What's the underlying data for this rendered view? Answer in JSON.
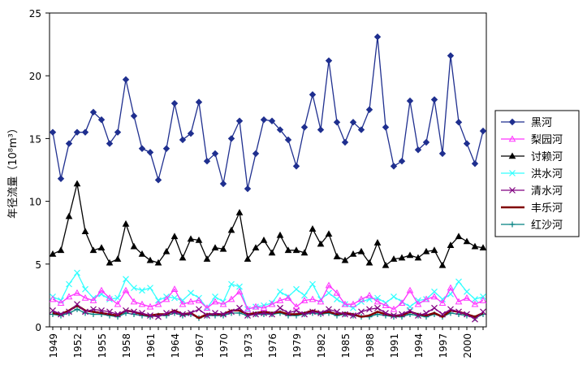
{
  "chart_data": {
    "type": "line",
    "title": "",
    "xlabel": "",
    "ylabel": "年径流量（10⁸m³）",
    "ylim": [
      0,
      25
    ],
    "yticks": [
      0,
      5,
      10,
      15,
      20,
      25
    ],
    "x": [
      1949,
      1950,
      1951,
      1952,
      1953,
      1954,
      1955,
      1956,
      1957,
      1958,
      1959,
      1960,
      1961,
      1962,
      1963,
      1964,
      1965,
      1966,
      1967,
      1968,
      1969,
      1970,
      1971,
      1972,
      1973,
      1974,
      1975,
      1976,
      1977,
      1978,
      1979,
      1980,
      1981,
      1982,
      1983,
      1984,
      1985,
      1986,
      1987,
      1988,
      1989,
      1990,
      1991,
      1992,
      1993,
      1994,
      1995,
      1996,
      1997,
      1998,
      1999,
      2000,
      2001,
      2002
    ],
    "xtick_labels": [
      "1949",
      "1952",
      "1955",
      "1958",
      "1961",
      "1964",
      "1967",
      "1970",
      "1973",
      "1976",
      "1979",
      "1982",
      "1985",
      "1988",
      "1991",
      "1994",
      "1997",
      "2000"
    ],
    "legend_position": "right",
    "series": [
      {
        "name": "黑河",
        "color": "#1f2f8f",
        "marker": "diamond",
        "values": [
          15.5,
          11.8,
          14.6,
          15.5,
          15.5,
          17.1,
          16.5,
          14.6,
          15.5,
          19.7,
          16.8,
          14.2,
          13.9,
          11.7,
          14.2,
          17.8,
          14.9,
          15.4,
          17.9,
          13.2,
          13.8,
          11.4,
          15.0,
          16.4,
          11.0,
          13.8,
          16.5,
          16.4,
          15.7,
          14.9,
          12.8,
          15.9,
          18.5,
          15.7,
          21.2,
          16.3,
          14.7,
          16.3,
          15.7,
          17.3,
          23.1,
          15.9,
          12.8,
          13.2,
          18.0,
          14.1,
          14.7,
          18.1,
          13.8,
          21.6,
          16.3,
          14.6,
          13.0,
          15.6
        ]
      },
      {
        "name": "梨园河",
        "color": "#ff33ff",
        "marker": "triangle-open",
        "values": [
          2.2,
          1.9,
          2.4,
          2.7,
          2.3,
          2.1,
          2.9,
          2.3,
          1.8,
          2.9,
          2.0,
          1.8,
          1.6,
          1.8,
          2.2,
          3.0,
          1.8,
          2.0,
          2.1,
          1.5,
          2.0,
          1.8,
          2.2,
          2.8,
          1.4,
          1.6,
          1.5,
          1.8,
          2.1,
          2.3,
          1.6,
          2.1,
          2.2,
          2.0,
          3.3,
          2.7,
          1.8,
          1.8,
          2.2,
          2.5,
          2.0,
          1.7,
          1.4,
          1.9,
          2.9,
          1.8,
          2.2,
          2.4,
          1.9,
          3.1,
          2.0,
          2.3,
          1.8,
          2.1
        ]
      },
      {
        "name": "讨赖河",
        "color": "#000000",
        "marker": "triangle",
        "values": [
          5.8,
          6.1,
          8.8,
          11.4,
          7.6,
          6.1,
          6.3,
          5.1,
          5.4,
          8.2,
          6.4,
          5.8,
          5.3,
          5.1,
          6.0,
          7.2,
          5.5,
          7.0,
          6.9,
          5.4,
          6.3,
          6.2,
          7.7,
          9.1,
          5.4,
          6.3,
          6.9,
          5.9,
          7.3,
          6.1,
          6.1,
          5.9,
          7.8,
          6.6,
          7.4,
          5.6,
          5.3,
          5.8,
          6.0,
          5.1,
          6.7,
          4.9,
          5.4,
          5.5,
          5.7,
          5.5,
          6.0,
          6.1,
          4.9,
          6.5,
          7.2,
          6.8,
          6.4,
          6.3
        ]
      },
      {
        "name": "洪水河",
        "color": "#33ffff",
        "marker": "x",
        "values": [
          2.4,
          2.1,
          3.4,
          4.3,
          3.0,
          2.3,
          2.6,
          2.2,
          2.3,
          3.8,
          3.1,
          2.9,
          3.1,
          2.1,
          2.4,
          2.3,
          2.1,
          2.7,
          2.3,
          1.5,
          2.4,
          2.0,
          3.4,
          3.2,
          1.4,
          1.6,
          1.7,
          1.9,
          2.8,
          2.4,
          3.0,
          2.5,
          3.4,
          2.2,
          2.7,
          2.2,
          1.8,
          1.5,
          2.0,
          2.2,
          2.3,
          1.9,
          2.4,
          2.0,
          1.6,
          2.1,
          2.2,
          2.8,
          2.2,
          2.6,
          3.6,
          2.8,
          2.2,
          2.4
        ]
      },
      {
        "name": "清水河",
        "color": "#800080",
        "marker": "x",
        "values": [
          1.3,
          1.0,
          1.2,
          1.8,
          1.2,
          1.4,
          1.3,
          1.2,
          1.0,
          1.3,
          1.2,
          1.1,
          0.9,
          0.8,
          1.1,
          1.2,
          1.0,
          1.1,
          1.4,
          0.9,
          1.1,
          1.0,
          1.2,
          1.5,
          0.9,
          1.0,
          1.1,
          1.0,
          1.5,
          1.1,
          1.3,
          1.0,
          1.2,
          1.1,
          1.4,
          1.2,
          1.0,
          0.9,
          1.2,
          1.4,
          1.5,
          1.1,
          0.9,
          1.0,
          1.3,
          0.9,
          1.1,
          1.5,
          1.0,
          1.4,
          1.2,
          1.0,
          0.6,
          1.2
        ]
      },
      {
        "name": "丰乐河",
        "color": "#800000",
        "marker": "none",
        "values": [
          1.1,
          1.0,
          1.3,
          1.7,
          1.3,
          1.2,
          1.1,
          1.0,
          0.9,
          1.3,
          1.2,
          1.0,
          0.9,
          1.0,
          1.0,
          1.3,
          1.0,
          1.1,
          0.7,
          1.0,
          1.0,
          1.0,
          1.3,
          1.3,
          1.0,
          1.1,
          1.2,
          1.1,
          1.2,
          1.0,
          1.0,
          1.1,
          1.3,
          1.1,
          1.2,
          1.0,
          1.1,
          1.0,
          0.8,
          0.9,
          1.2,
          1.0,
          0.9,
          0.9,
          1.2,
          1.0,
          0.9,
          1.1,
          0.8,
          1.3,
          1.2,
          1.0,
          0.8,
          1.1
        ]
      },
      {
        "name": "红沙河",
        "color": "#008080",
        "marker": "plus",
        "values": [
          1.0,
          0.9,
          1.1,
          1.4,
          1.1,
          1.0,
          1.0,
          0.9,
          0.8,
          1.1,
          1.0,
          0.9,
          0.8,
          0.9,
          0.9,
          1.1,
          0.9,
          1.0,
          0.7,
          0.9,
          0.9,
          0.9,
          1.1,
          1.1,
          0.9,
          1.0,
          1.0,
          1.0,
          1.1,
          0.9,
          0.9,
          1.0,
          1.1,
          1.0,
          1.1,
          0.9,
          1.0,
          0.9,
          0.8,
          0.8,
          1.0,
          0.9,
          0.8,
          0.8,
          1.0,
          0.9,
          0.8,
          1.0,
          0.8,
          1.1,
          1.0,
          0.9,
          0.7,
          1.0
        ]
      }
    ]
  }
}
